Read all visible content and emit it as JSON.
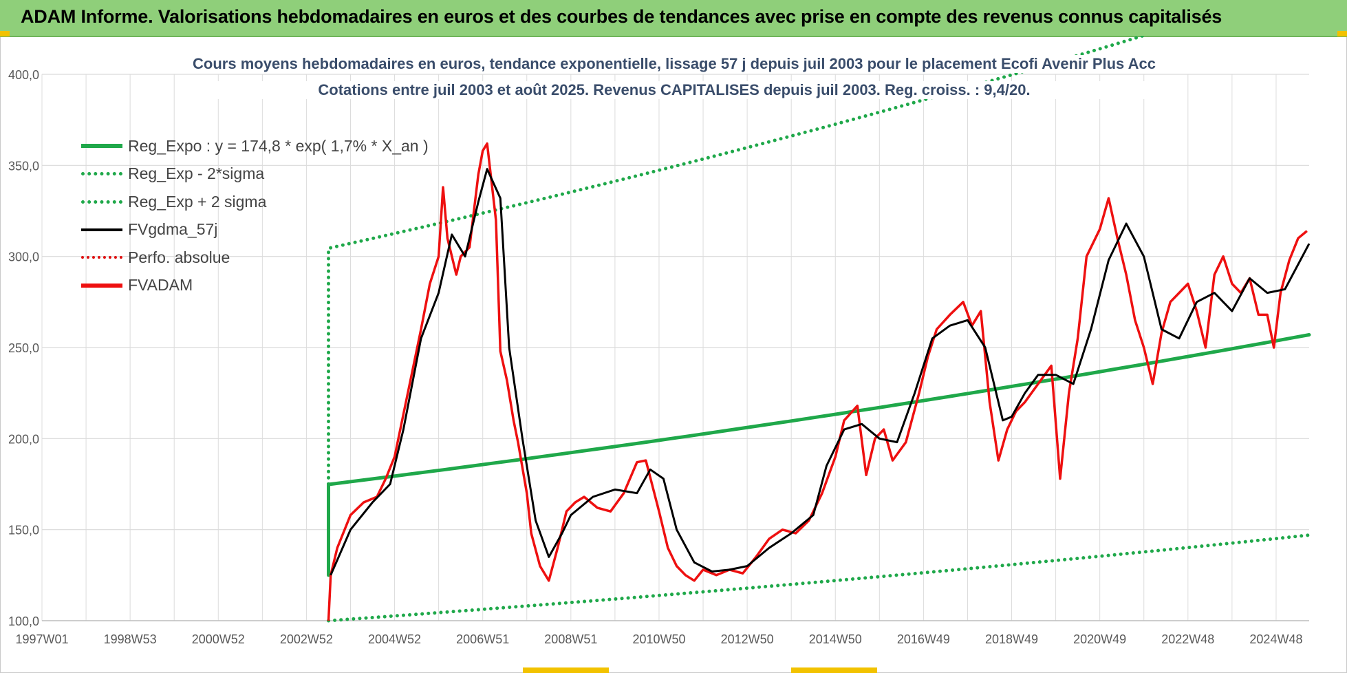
{
  "header": {
    "title": "ADAM Informe. Valorisations hebdomadaires en euros et des courbes de tendances avec prise en compte des revenus connus capitalisés"
  },
  "chart_data": {
    "type": "line",
    "title_line1": "Cours moyens hebdomadaires en euros, tendance exponentielle, lissage 57 j depuis juil 2003 pour le placement Ecofi Avenir Plus Acc",
    "title_line2": "Cotations entre juil 2003 et août 2025. Revenus CAPITALISES depuis juil 2003. Reg. croiss. : 9,4/20.",
    "ylim": [
      100,
      400
    ],
    "y_ticks": [
      "100,0",
      "150,0",
      "200,0",
      "250,0",
      "300,0",
      "350,0",
      "400,0"
    ],
    "xlim": [
      1997.0,
      2025.75
    ],
    "x_ticks": [
      {
        "label": "1997W01",
        "year": 1997.0
      },
      {
        "label": "1998W53",
        "year": 1999.0
      },
      {
        "label": "2000W52",
        "year": 2001.0
      },
      {
        "label": "2002W52",
        "year": 2003.0
      },
      {
        "label": "2004W52",
        "year": 2005.0
      },
      {
        "label": "2006W51",
        "year": 2007.0
      },
      {
        "label": "2008W51",
        "year": 2009.0
      },
      {
        "label": "2010W50",
        "year": 2011.0
      },
      {
        "label": "2012W50",
        "year": 2013.0
      },
      {
        "label": "2014W50",
        "year": 2015.0
      },
      {
        "label": "2016W49",
        "year": 2017.0
      },
      {
        "label": "2018W49",
        "year": 2019.0
      },
      {
        "label": "2020W49",
        "year": 2021.0
      },
      {
        "label": "2022W48",
        "year": 2023.0
      },
      {
        "label": "2024W48",
        "year": 2025.0
      }
    ],
    "grid": true,
    "legend_position": "top-left",
    "series": [
      {
        "name": "Reg_Expo : y = 174,8 * exp( 1,7% *  X_an )",
        "color": "#1fa84a",
        "style": "solid",
        "x": [
          2003.5,
          2025.75
        ],
        "y": [
          174.8,
          257.0
        ],
        "start_jump": 125
      },
      {
        "name": "Reg_Exp - 2*sigma",
        "color": "#1fa84a",
        "style": "dotted",
        "x": [
          2003.5,
          2025.75
        ],
        "y": [
          100.0,
          147.0
        ]
      },
      {
        "name": "Reg_Exp + 2 sigma",
        "color": "#1fa84a",
        "style": "dotted",
        "x": [
          2003.5,
          2025.75
        ],
        "y": [
          304.5,
          450.0
        ],
        "start_jump": 175
      },
      {
        "name": "FVgdma_57j",
        "color": "#000000",
        "style": "solid",
        "x": [
          2003.55,
          2004.0,
          2004.5,
          2004.9,
          2005.2,
          2005.6,
          2006.0,
          2006.3,
          2006.6,
          2006.9,
          2007.1,
          2007.4,
          2007.6,
          2007.9,
          2008.2,
          2008.5,
          2008.8,
          2009.0,
          2009.5,
          2010.0,
          2010.5,
          2010.8,
          2011.1,
          2011.4,
          2011.8,
          2012.2,
          2012.6,
          2013.0,
          2013.5,
          2014.0,
          2014.5,
          2014.8,
          2015.2,
          2015.6,
          2016.0,
          2016.4,
          2016.8,
          2017.2,
          2017.6,
          2018.0,
          2018.4,
          2018.8,
          2019.0,
          2019.3,
          2019.6,
          2020.0,
          2020.4,
          2020.8,
          2021.2,
          2021.6,
          2022.0,
          2022.4,
          2022.8,
          2023.2,
          2023.6,
          2024.0,
          2024.4,
          2024.8,
          2025.2,
          2025.75
        ],
        "y": [
          125,
          150,
          165,
          175,
          205,
          255,
          280,
          312,
          300,
          330,
          348,
          332,
          250,
          200,
          155,
          135,
          148,
          158,
          168,
          172,
          170,
          183,
          178,
          150,
          132,
          127,
          128,
          130,
          140,
          148,
          158,
          185,
          205,
          208,
          200,
          198,
          225,
          255,
          262,
          265,
          250,
          210,
          212,
          225,
          235,
          235,
          230,
          260,
          298,
          318,
          300,
          260,
          255,
          275,
          280,
          270,
          288,
          280,
          282,
          307
        ]
      },
      {
        "name": "Perfo. absolue",
        "color": "#e01010",
        "style": "dotted",
        "x": [],
        "y": []
      },
      {
        "name": "FVADAM",
        "color": "#ee1010",
        "style": "solid",
        "x": [
          2003.5,
          2003.55,
          2003.7,
          2004.0,
          2004.3,
          2004.6,
          2004.8,
          2005.0,
          2005.3,
          2005.6,
          2005.8,
          2006.0,
          2006.1,
          2006.2,
          2006.4,
          2006.5,
          2006.7,
          2006.9,
          2007.0,
          2007.1,
          2007.3,
          2007.4,
          2007.55,
          2007.7,
          2007.8,
          2008.0,
          2008.1,
          2008.3,
          2008.5,
          2008.7,
          2008.9,
          2009.1,
          2009.3,
          2009.6,
          2009.9,
          2010.2,
          2010.5,
          2010.7,
          2011.0,
          2011.2,
          2011.4,
          2011.6,
          2011.8,
          2012.0,
          2012.3,
          2012.6,
          2012.9,
          2013.2,
          2013.5,
          2013.8,
          2014.1,
          2014.4,
          2014.7,
          2015.0,
          2015.2,
          2015.5,
          2015.7,
          2015.9,
          2016.1,
          2016.3,
          2016.6,
          2016.9,
          2017.1,
          2017.3,
          2017.6,
          2017.9,
          2018.1,
          2018.3,
          2018.5,
          2018.7,
          2018.9,
          2019.1,
          2019.3,
          2019.6,
          2019.9,
          2020.1,
          2020.3,
          2020.5,
          2020.7,
          2021.0,
          2021.2,
          2021.4,
          2021.6,
          2021.8,
          2022.0,
          2022.2,
          2022.4,
          2022.6,
          2022.8,
          2023.0,
          2023.2,
          2023.4,
          2023.6,
          2023.8,
          2024.0,
          2024.2,
          2024.4,
          2024.6,
          2024.8,
          2024.95,
          2025.1,
          2025.3,
          2025.5,
          2025.7
        ],
        "y": [
          100,
          125,
          140,
          158,
          165,
          168,
          178,
          190,
          225,
          260,
          285,
          300,
          338,
          310,
          290,
          300,
          305,
          345,
          358,
          362,
          320,
          248,
          232,
          210,
          198,
          170,
          148,
          130,
          122,
          140,
          160,
          165,
          168,
          162,
          160,
          170,
          187,
          188,
          160,
          140,
          130,
          125,
          122,
          128,
          125,
          128,
          126,
          135,
          145,
          150,
          148,
          155,
          170,
          190,
          210,
          218,
          180,
          200,
          205,
          188,
          198,
          225,
          245,
          260,
          268,
          275,
          262,
          270,
          220,
          188,
          205,
          215,
          220,
          230,
          240,
          178,
          225,
          255,
          300,
          315,
          332,
          310,
          290,
          265,
          250,
          230,
          258,
          275,
          280,
          285,
          270,
          250,
          290,
          300,
          285,
          280,
          288,
          268,
          268,
          250,
          280,
          298,
          310,
          314
        ]
      }
    ]
  }
}
